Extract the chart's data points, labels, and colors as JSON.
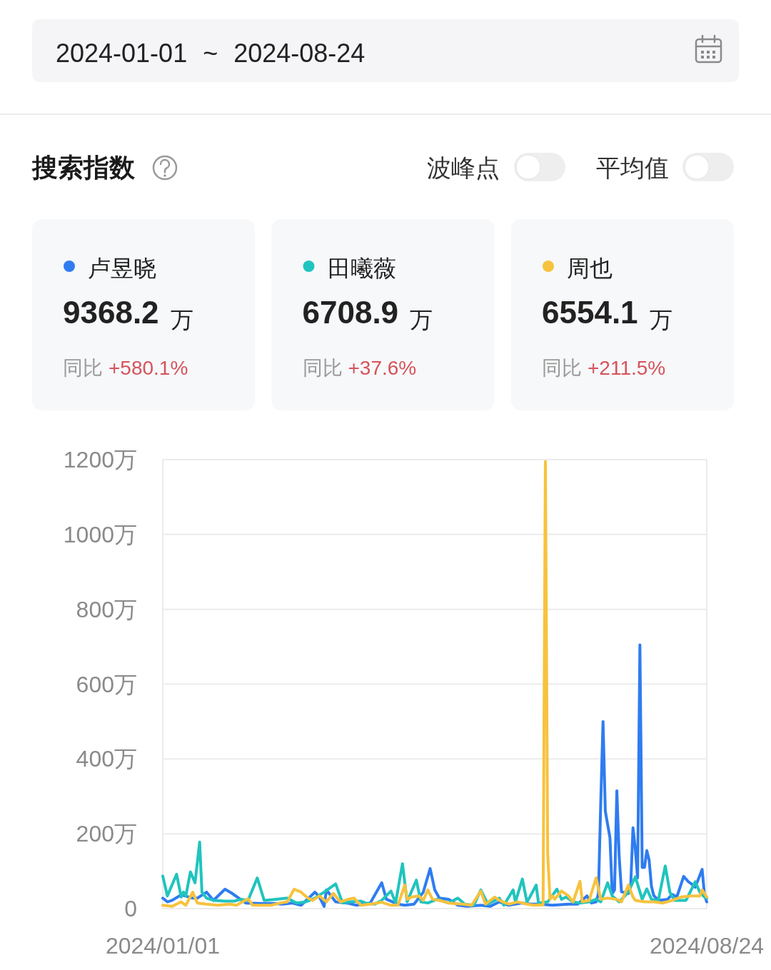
{
  "chart_data": {
    "type": "line",
    "title": "搜索指数",
    "annotations": [
      "2024-01-01 ~ 2024-08-24",
      "波峰点",
      "平均值",
      "9368.2 万",
      "同比 +580.1%",
      "6708.9 万",
      "同比 +37.6%",
      "6554.1 万",
      "同比 +211.5%"
    ],
    "xlim": [
      "2024-01-01",
      "2024-08-24"
    ],
    "xticks": [
      {
        "value": "2024-01-01",
        "label": "2024/01/01"
      },
      {
        "value": "2024-08-24",
        "label": "2024/08/24"
      }
    ],
    "ylim": [
      0,
      1200
    ],
    "yticks": [
      0,
      {
        "value": 200,
        "label": "200万"
      },
      {
        "value": 400,
        "label": "400万"
      },
      {
        "value": 600,
        "label": "600万"
      },
      {
        "value": 800,
        "label": "800万"
      },
      {
        "value": 1000,
        "label": "1000万"
      },
      {
        "value": 1200,
        "label": "1200万"
      }
    ],
    "grid": "y",
    "legend": "top",
    "series": [
      {
        "name": "卢昱晓",
        "color": "#2f7cf0",
        "x": [
          "2024-01-01",
          "2024-01-03",
          "2024-01-05",
          "2024-01-09",
          "2024-01-14",
          "2024-01-16",
          "2024-01-20",
          "2024-01-23",
          "2024-01-28",
          "2024-01-31",
          "2024-02-03",
          "2024-02-06",
          "2024-02-12",
          "2024-02-18",
          "2024-02-22",
          "2024-02-26",
          "2024-03-01",
          "2024-03-07",
          "2024-03-09",
          "2024-03-11",
          "2024-03-12",
          "2024-03-16",
          "2024-03-21",
          "2024-03-25",
          "2024-03-31",
          "2024-04-05",
          "2024-04-07",
          "2024-04-12",
          "2024-04-15",
          "2024-04-19",
          "2024-04-23",
          "2024-04-26",
          "2024-04-28",
          "2024-04-30",
          "2024-05-04",
          "2024-05-08",
          "2024-05-12",
          "2024-05-18",
          "2024-05-22",
          "2024-05-26",
          "2024-05-30",
          "2024-06-05",
          "2024-06-09",
          "2024-06-12",
          "2024-06-18",
          "2024-06-25",
          "2024-06-29",
          "2024-07-03",
          "2024-07-05",
          "2024-07-07",
          "2024-07-08",
          "2024-07-09",
          "2024-07-10",
          "2024-07-11",
          "2024-07-12",
          "2024-07-13",
          "2024-07-14",
          "2024-07-15",
          "2024-07-16",
          "2024-07-17",
          "2024-07-18",
          "2024-07-21",
          "2024-07-22",
          "2024-07-23",
          "2024-07-24",
          "2024-07-25",
          "2024-07-26",
          "2024-07-27",
          "2024-07-28",
          "2024-07-29",
          "2024-07-30",
          "2024-07-31",
          "2024-08-01",
          "2024-08-03",
          "2024-08-07",
          "2024-08-09",
          "2024-08-11",
          "2024-08-14",
          "2024-08-16",
          "2024-08-18",
          "2024-08-19",
          "2024-08-22",
          "2024-08-23",
          "2024-08-24"
        ],
        "values": [
          28,
          18,
          22,
          37,
          28,
          28,
          44,
          22,
          52,
          41,
          28,
          15,
          14,
          14,
          12,
          15,
          9,
          44,
          31,
          6,
          50,
          18,
          15,
          9,
          15,
          69,
          25,
          12,
          9,
          12,
          44,
          107,
          50,
          28,
          25,
          9,
          6,
          9,
          6,
          18,
          9,
          15,
          12,
          12,
          9,
          12,
          12,
          34,
          15,
          18,
          40,
          280,
          500,
          260,
          225,
          190,
          40,
          50,
          315,
          140,
          45,
          40,
          60,
          216,
          160,
          82,
          705,
          110,
          110,
          155,
          130,
          60,
          35,
          22,
          25,
          38,
          31,
          86,
          72,
          63,
          57,
          105,
          38,
          18
        ]
      },
      {
        "name": "田曦薇",
        "color": "#20c4be",
        "x": [
          "2024-01-01",
          "2024-01-03",
          "2024-01-07",
          "2024-01-09",
          "2024-01-10",
          "2024-01-11",
          "2024-01-13",
          "2024-01-15",
          "2024-01-17",
          "2024-01-18",
          "2024-01-20",
          "2024-01-23",
          "2024-01-28",
          "2024-02-01",
          "2024-02-04",
          "2024-02-07",
          "2024-02-11",
          "2024-02-14",
          "2024-02-19",
          "2024-02-24",
          "2024-02-28",
          "2024-03-03",
          "2024-03-07",
          "2024-03-11",
          "2024-03-16",
          "2024-03-19",
          "2024-03-22",
          "2024-03-27",
          "2024-03-29",
          "2024-04-02",
          "2024-04-05",
          "2024-04-09",
          "2024-04-11",
          "2024-04-14",
          "2024-04-16",
          "2024-04-20",
          "2024-04-22",
          "2024-04-25",
          "2024-04-29",
          "2024-05-04",
          "2024-05-08",
          "2024-05-11",
          "2024-05-15",
          "2024-05-18",
          "2024-05-21",
          "2024-05-26",
          "2024-05-28",
          "2024-06-01",
          "2024-06-02",
          "2024-06-05",
          "2024-06-07",
          "2024-06-08",
          "2024-06-11",
          "2024-06-12",
          "2024-06-16",
          "2024-06-20",
          "2024-06-22",
          "2024-06-24",
          "2024-06-27",
          "2024-06-30",
          "2024-07-04",
          "2024-07-07",
          "2024-07-09",
          "2024-07-12",
          "2024-07-14",
          "2024-07-17",
          "2024-07-21",
          "2024-07-24",
          "2024-07-27",
          "2024-07-29",
          "2024-07-31",
          "2024-08-03",
          "2024-08-06",
          "2024-08-08",
          "2024-08-10",
          "2024-08-15",
          "2024-08-19",
          "2024-08-21",
          "2024-08-23",
          "2024-08-24"
        ],
        "values": [
          87,
          34,
          92,
          31,
          44,
          34,
          98,
          69,
          178,
          44,
          28,
          22,
          20,
          20,
          25,
          22,
          82,
          22,
          25,
          28,
          15,
          18,
          28,
          44,
          66,
          15,
          18,
          20,
          15,
          12,
          22,
          47,
          15,
          120,
          18,
          76,
          18,
          15,
          25,
          15,
          28,
          12,
          9,
          50,
          12,
          28,
          9,
          50,
          18,
          79,
          18,
          28,
          63,
          15,
          18,
          52,
          25,
          31,
          18,
          15,
          18,
          25,
          18,
          69,
          34,
          18,
          44,
          85,
          25,
          53,
          25,
          22,
          114,
          44,
          22,
          22,
          72,
          44,
          31,
          28
        ]
      },
      {
        "name": "周也",
        "color": "#f7c23e",
        "x": [
          "2024-01-01",
          "2024-01-05",
          "2024-01-09",
          "2024-01-11",
          "2024-01-14",
          "2024-01-16",
          "2024-01-20",
          "2024-01-25",
          "2024-01-30",
          "2024-02-02",
          "2024-02-07",
          "2024-02-09",
          "2024-02-17",
          "2024-02-21",
          "2024-02-24",
          "2024-02-27",
          "2024-03-01",
          "2024-03-04",
          "2024-03-06",
          "2024-03-09",
          "2024-03-12",
          "2024-03-15",
          "2024-03-18",
          "2024-03-22",
          "2024-03-24",
          "2024-03-27",
          "2024-03-31",
          "2024-04-05",
          "2024-04-09",
          "2024-04-12",
          "2024-04-15",
          "2024-04-16",
          "2024-04-18",
          "2024-04-21",
          "2024-04-23",
          "2024-04-25",
          "2024-04-27",
          "2024-04-30",
          "2024-05-04",
          "2024-05-10",
          "2024-05-14",
          "2024-05-18",
          "2024-05-20",
          "2024-05-24",
          "2024-05-26",
          "2024-05-30",
          "2024-06-03",
          "2024-06-07",
          "2024-06-10",
          "2024-06-14",
          "2024-06-15",
          "2024-06-16",
          "2024-06-17",
          "2024-06-18",
          "2024-06-19",
          "2024-06-22",
          "2024-06-25",
          "2024-06-27",
          "2024-06-30",
          "2024-07-01",
          "2024-07-04",
          "2024-07-07",
          "2024-07-09",
          "2024-07-12",
          "2024-07-16",
          "2024-07-18",
          "2024-07-21",
          "2024-07-23",
          "2024-07-24",
          "2024-07-28",
          "2024-08-01",
          "2024-08-05",
          "2024-08-09",
          "2024-08-13",
          "2024-08-17",
          "2024-08-21",
          "2024-08-22",
          "2024-08-24"
        ],
        "values": [
          9,
          6,
          18,
          9,
          44,
          15,
          12,
          9,
          12,
          9,
          26,
          9,
          9,
          15,
          18,
          52,
          44,
          28,
          22,
          34,
          18,
          41,
          18,
          26,
          28,
          9,
          12,
          17,
          9,
          9,
          63,
          25,
          31,
          34,
          22,
          50,
          25,
          22,
          15,
          12,
          9,
          47,
          12,
          31,
          22,
          12,
          18,
          12,
          9,
          10,
          1195,
          146,
          25,
          34,
          25,
          47,
          34,
          18,
          73,
          18,
          22,
          82,
          25,
          28,
          25,
          18,
          63,
          31,
          22,
          18,
          18,
          15,
          22,
          31,
          34,
          34,
          50,
          31
        ]
      }
    ]
  }
}
